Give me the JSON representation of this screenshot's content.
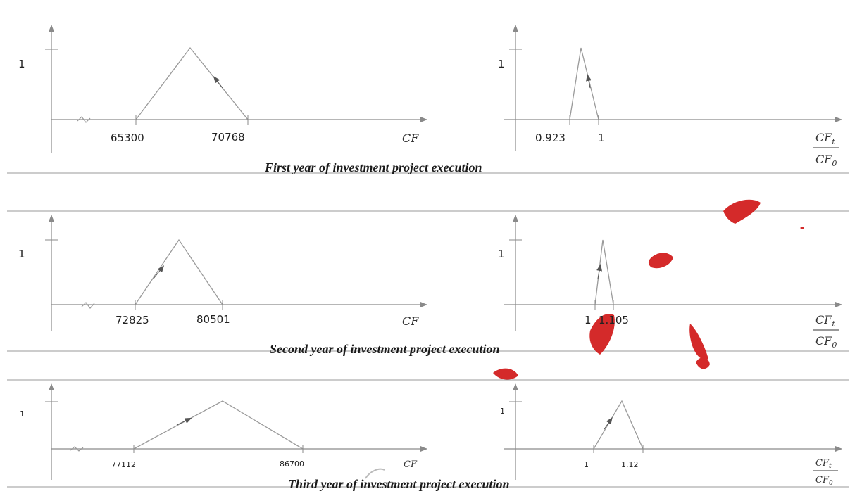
{
  "y_max_label": "1",
  "cf_label": "CF",
  "ratio_label": {
    "num": "CF",
    "num_sub": "t",
    "den": "CF",
    "den_sub": "0"
  },
  "panels": [
    {
      "caption": "First year of investment project execution",
      "left": {
        "a": "65300",
        "c": "70768"
      },
      "right": {
        "a": "0.923",
        "c": "1"
      }
    },
    {
      "caption": "Second year of investment project execution",
      "left": {
        "a": "72825",
        "c": "80501"
      },
      "right": {
        "a": "1",
        "c": "1.105"
      }
    },
    {
      "caption": "Third year of investment project execution",
      "left": {
        "a": "77112",
        "c": "86700"
      },
      "right": {
        "a": "1",
        "c": "1.12"
      }
    }
  ],
  "colors": {
    "axis": "#8a8a8a",
    "triangle": "#9a9a9a",
    "arrow": "#555555",
    "separator": "#999999",
    "watermark": "#d42a2a"
  }
}
